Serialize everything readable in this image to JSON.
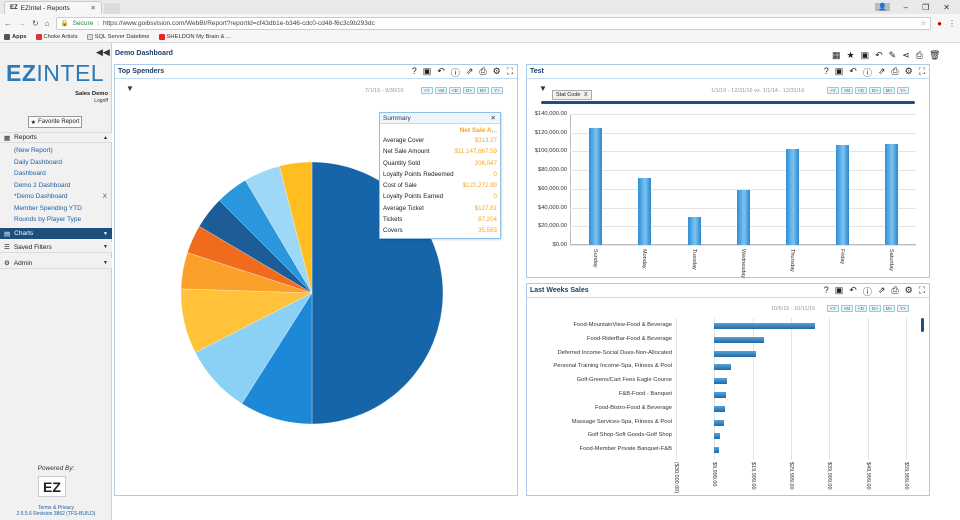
{
  "browser": {
    "tab_title": "EZIntel - Reports",
    "secure_label": "Secure",
    "url": "https://www.goibsvision.com/WebBI/Report?reportId=cf43db1e-b346-cdc0-cd48-f6c3c9b293dc",
    "bookmarks": [
      "Apps",
      "Choke Artists",
      "SQL Server Datetime",
      "SHELDON My Brain & ..."
    ]
  },
  "sidebar": {
    "user_name": "Sales Demo",
    "logoff": "Logoff",
    "favorite_button": "Favorite Report",
    "reports_label": "Reports",
    "reports": [
      {
        "label": "(New Report)",
        "has_x": false
      },
      {
        "label": "Daily Dashboard",
        "has_x": false
      },
      {
        "label": "Dashboard",
        "has_x": false
      },
      {
        "label": "Demo 2 Dashboard",
        "has_x": false
      },
      {
        "label": "*Demo Dashboard",
        "has_x": true
      },
      {
        "label": "Member Spending YTD",
        "has_x": false
      },
      {
        "label": "Rounds by Player Type",
        "has_x": false
      }
    ],
    "remove_x": "X",
    "charts_label": "Charts",
    "saved_filters_label": "Saved Filters",
    "admin_label": "Admin",
    "powered_by": "Powered By:",
    "footer_terms": "Terms & Privacy",
    "footer_version": "2.6.5.6 Revision 3862 (TFS-BUILD)"
  },
  "main": {
    "title": "Demo Dashboard"
  },
  "top_spenders": {
    "title": "Top Spenders",
    "date_range": "7/1/15 - 9/30/15",
    "buttons": [
      "<Y",
      "<M",
      "<D",
      "D>",
      "M>",
      "Y>"
    ],
    "pie_slices": [
      {
        "value": 50.0,
        "color": "#1565a8"
      },
      {
        "value": 9.0,
        "color": "#1e88d8"
      },
      {
        "value": 8.5,
        "color": "#8bd0f5"
      },
      {
        "value": 8.0,
        "color": "#ffc23a"
      },
      {
        "value": 4.5,
        "color": "#fba12a"
      },
      {
        "value": 3.5,
        "color": "#f06b1c"
      },
      {
        "value": 4.0,
        "color": "#1d5d97"
      },
      {
        "value": 4.0,
        "color": "#2a96dc"
      },
      {
        "value": 4.5,
        "color": "#9fd8f7"
      },
      {
        "value": 4.0,
        "color": "#ffbe1f"
      }
    ],
    "summary": {
      "title": "Summary",
      "column_header": "Net Sale A...",
      "rows": [
        {
          "label": "Average Cover",
          "value": "$313.27"
        },
        {
          "label": "Net Sale Amount",
          "value": "$11,147,667.59"
        },
        {
          "label": "Quantity Sold",
          "value": "206,047"
        },
        {
          "label": "Loyalty Points Redeemed",
          "value": "0"
        },
        {
          "label": "Cost of Sale",
          "value": "$122,272.99"
        },
        {
          "label": "Loyalty Points Earned",
          "value": "0"
        },
        {
          "label": "Average Ticket",
          "value": "$127.81"
        },
        {
          "label": "Tickets",
          "value": "87,204"
        },
        {
          "label": "Covers",
          "value": "35,583"
        }
      ]
    }
  },
  "test_panel": {
    "title": "Test",
    "date_range": "1/1/16 - 12/31/16 vs. 1/1/14 - 12/31/16",
    "buttons": [
      "<Y",
      "<M",
      "<D",
      "D>",
      "M>",
      "Y>"
    ],
    "chip_label": "Stat Code",
    "chip_x": "X"
  },
  "last_weeks": {
    "title": "Last Weeks Sales",
    "date_range": "10/5/15 - 10/11/15",
    "buttons": [
      "<Y",
      "<M",
      "<D",
      "D>",
      "M>",
      "Y>"
    ]
  },
  "chart_data": [
    {
      "type": "bar",
      "categories": [
        "Sunday",
        "Monday",
        "Tuesday",
        "Wednesday",
        "Thursday",
        "Friday",
        "Saturday"
      ],
      "values": [
        125000,
        72000,
        30000,
        59000,
        103000,
        107000,
        108000
      ],
      "ylim": [
        0,
        140000
      ],
      "yticks": [
        "$0.00",
        "$20,000.00",
        "$40,000.00",
        "$60,000.00",
        "$80,000.00",
        "$100,000.00",
        "$120,000.00",
        "$140,000.00"
      ],
      "grid": true
    },
    {
      "type": "bar",
      "orientation": "horizontal",
      "categories": [
        "Food-MountainView-Food & Beverage",
        "Food-RiderBar-Food & Beverage",
        "Deferred Income-Social Dues-Non-Allocated",
        "Personal Training Income-Spa, Fitness & Pool",
        "Golf-Greens/Cart Fees Eagle Course",
        "F&B-Food - Banquet",
        "Food-Bistro-Food & Beverage",
        "Massage Services-Spa, Fitness & Pool",
        "Golf Shop-Soft Goods-Golf Shop",
        "Food-Member Private Banquet-F&B"
      ],
      "values": [
        79000,
        39000,
        33000,
        13000,
        10000,
        9500,
        8000,
        7800,
        4200,
        3300
      ],
      "xlim": [
        -30000,
        150000
      ],
      "xticks": [
        "($30,000.00)",
        "$9,999.00",
        "$19,999.00",
        "$29,999.00",
        "$39,999.00",
        "$49,999.00",
        "$59,999.00"
      ],
      "grid": true
    }
  ]
}
